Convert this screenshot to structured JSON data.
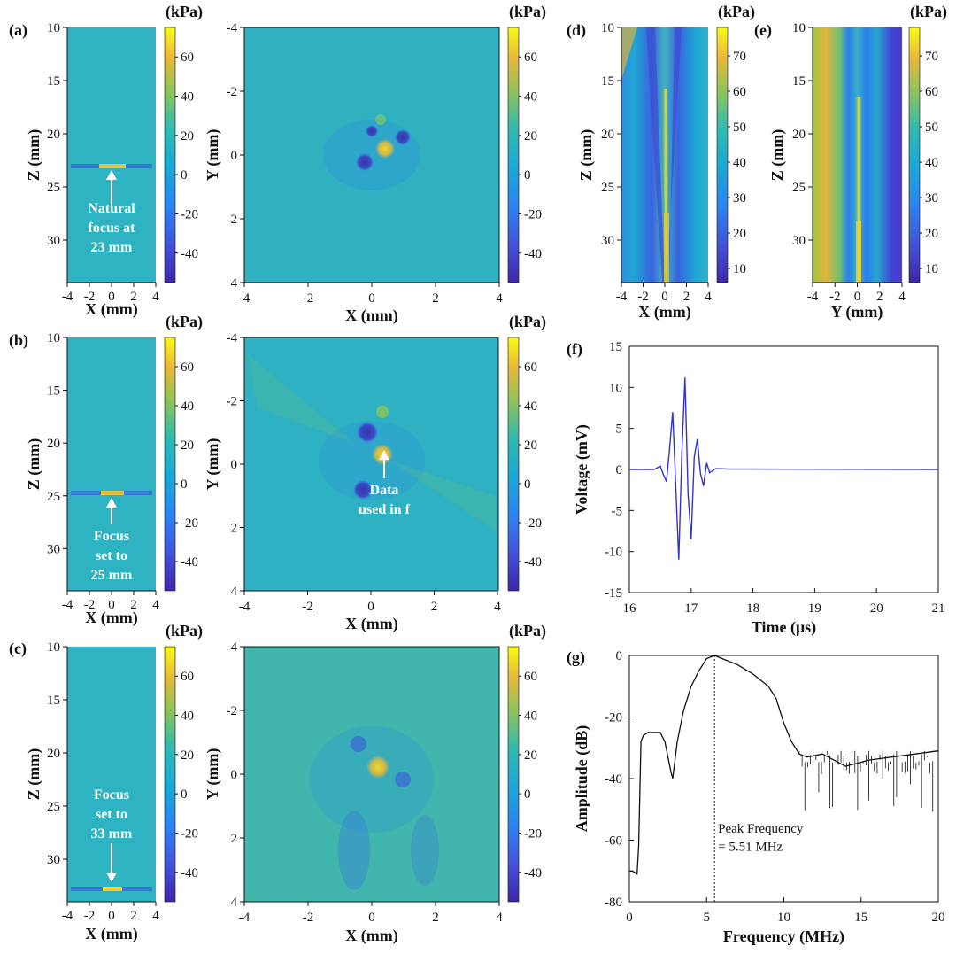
{
  "figure": {
    "colorbar_unit": "(kPa)",
    "colorbar_ticks": [
      "60",
      "40",
      "20",
      "0",
      "-20",
      "-40"
    ],
    "colorbar_ticks_de": [
      "70",
      "60",
      "50",
      "40",
      "30",
      "20",
      "10"
    ],
    "z_ticks": [
      "10",
      "15",
      "20",
      "25",
      "30"
    ],
    "x_ticks_side": [
      "-4",
      "-2",
      "0",
      "2",
      "4"
    ],
    "xy_ticks": [
      "-4",
      "-2",
      "0",
      "2",
      "4"
    ],
    "xy_ticks_y": [
      "-4",
      "-2",
      "0",
      "2",
      "4"
    ],
    "xlabel_x": "X (mm)",
    "ylabel_y": "Y (mm)",
    "ylabel_z": "Z (mm)",
    "xlabel_y": "Y (mm)"
  },
  "panels": {
    "a": {
      "label": "(a)",
      "annotation": [
        "Natural",
        "focus at",
        "23 mm"
      ]
    },
    "b": {
      "label": "(b)",
      "annotation": [
        "Focus",
        "set to",
        "25 mm"
      ],
      "xy_annotation": [
        "Data",
        "used in f"
      ]
    },
    "c": {
      "label": "(c)",
      "annotation": [
        "Focus",
        "set to",
        "33 mm"
      ]
    },
    "d": {
      "label": "(d)"
    },
    "e": {
      "label": "(e)"
    },
    "f": {
      "label": "(f)"
    },
    "g": {
      "label": "(g)",
      "annotation": [
        "Peak Frequency",
        "= 5.51 MHz"
      ]
    }
  },
  "colors": {
    "viridis_low": "#3e26a8",
    "viridis_mid": "#2fb3bf",
    "viridis_high": "#f9fb15",
    "trace_f": "#3333cc",
    "trace_g": "#111111"
  },
  "chart_data": [
    {
      "type": "heatmap",
      "panel": "a",
      "title": "",
      "xlabel": "X (mm)",
      "ylabel": "Z (mm)",
      "xlim": [
        -4,
        4
      ],
      "ylim": [
        10,
        34
      ],
      "colorbar": {
        "label": "(kPa)",
        "range": [
          -55,
          75
        ],
        "ticks": [
          60,
          40,
          20,
          0,
          -20,
          -40
        ]
      },
      "focus_z_mm": 23
    },
    {
      "type": "heatmap",
      "panel": "a-xy",
      "xlabel": "X (mm)",
      "ylabel": "Y (mm)",
      "xlim": [
        -4,
        4
      ],
      "ylim": [
        -4,
        4
      ],
      "colorbar": {
        "label": "(kPa)",
        "range": [
          -55,
          75
        ],
        "ticks": [
          60,
          40,
          20,
          0,
          -20,
          -40
        ]
      }
    },
    {
      "type": "heatmap",
      "panel": "b",
      "xlabel": "X (mm)",
      "ylabel": "Z (mm)",
      "xlim": [
        -4,
        4
      ],
      "ylim": [
        10,
        34
      ],
      "colorbar": {
        "label": "(kPa)",
        "range": [
          -55,
          75
        ],
        "ticks": [
          60,
          40,
          20,
          0,
          -20,
          -40
        ]
      },
      "focus_z_mm": 25
    },
    {
      "type": "heatmap",
      "panel": "b-xy",
      "xlabel": "X (mm)",
      "ylabel": "Y (mm)",
      "xlim": [
        -4,
        4
      ],
      "ylim": [
        -4,
        4
      ],
      "colorbar": {
        "label": "(kPa)",
        "range": [
          -55,
          75
        ],
        "ticks": [
          60,
          40,
          20,
          0,
          -20,
          -40
        ]
      }
    },
    {
      "type": "heatmap",
      "panel": "c",
      "xlabel": "X (mm)",
      "ylabel": "Z (mm)",
      "xlim": [
        -4,
        4
      ],
      "ylim": [
        10,
        34
      ],
      "colorbar": {
        "label": "(kPa)",
        "range": [
          -55,
          75
        ],
        "ticks": [
          60,
          40,
          20,
          0,
          -20,
          -40
        ]
      },
      "focus_z_mm": 33
    },
    {
      "type": "heatmap",
      "panel": "c-xy",
      "xlabel": "X (mm)",
      "ylabel": "Y (mm)",
      "xlim": [
        -4,
        4
      ],
      "ylim": [
        -4,
        4
      ],
      "colorbar": {
        "label": "(kPa)",
        "range": [
          -55,
          75
        ],
        "ticks": [
          60,
          40,
          20,
          0,
          -20,
          -40
        ]
      }
    },
    {
      "type": "heatmap",
      "panel": "d",
      "xlabel": "X (mm)",
      "ylabel": "Z (mm)",
      "xlim": [
        -4,
        4
      ],
      "ylim": [
        10,
        34
      ],
      "colorbar": {
        "label": "(kPa)",
        "range": [
          6,
          78
        ],
        "ticks": [
          70,
          60,
          50,
          40,
          30,
          20,
          10
        ]
      }
    },
    {
      "type": "heatmap",
      "panel": "e",
      "xlabel": "Y (mm)",
      "ylabel": "Z (mm)",
      "xlim": [
        -4,
        4
      ],
      "ylim": [
        10,
        34
      ],
      "colorbar": {
        "label": "(kPa)",
        "range": [
          6,
          78
        ],
        "ticks": [
          70,
          60,
          50,
          40,
          30,
          20,
          10
        ]
      }
    },
    {
      "type": "line",
      "panel": "f",
      "xlabel": "Time (μs)",
      "ylabel": "Voltage (mV)",
      "xlim": [
        16,
        21
      ],
      "ylim": [
        -15,
        15
      ],
      "xticks": [
        16,
        17,
        18,
        19,
        20,
        21
      ],
      "yticks": [
        15,
        10,
        5,
        0,
        -5,
        -10,
        -15
      ],
      "x": [
        16.0,
        16.4,
        16.5,
        16.55,
        16.6,
        16.65,
        16.7,
        16.75,
        16.8,
        16.85,
        16.9,
        16.95,
        17.0,
        17.05,
        17.1,
        17.15,
        17.2,
        17.25,
        17.3,
        17.4,
        17.6,
        21.0
      ],
      "y": [
        0,
        0,
        0.4,
        -0.6,
        -1.5,
        2.5,
        7.0,
        -2.0,
        -11.0,
        2.0,
        11.2,
        -3.0,
        -8.5,
        1.5,
        3.7,
        -0.5,
        -2.0,
        0.8,
        -0.4,
        0.1,
        0.05,
        0
      ]
    },
    {
      "type": "line",
      "panel": "g",
      "xlabel": "Frequency (MHz)",
      "ylabel": "Amplitude (dB)",
      "xlim": [
        0,
        20
      ],
      "ylim": [
        -80,
        0
      ],
      "xticks": [
        0,
        5,
        10,
        15,
        20
      ],
      "yticks": [
        0,
        -20,
        -40,
        -60,
        -80
      ],
      "x": [
        0,
        0.2,
        0.5,
        0.6,
        0.75,
        0.9,
        1.2,
        1.6,
        2.0,
        2.3,
        2.5,
        2.7,
        2.8,
        2.9,
        3.1,
        3.5,
        4.0,
        4.5,
        5.0,
        5.51,
        6.0,
        7.0,
        8.0,
        9.0,
        9.5,
        10.0,
        10.5,
        11.0,
        11.5,
        12.5,
        14.0,
        15.5,
        17.0,
        18.5,
        20.0
      ],
      "y": [
        -70,
        -70,
        -71,
        -62,
        -28,
        -26,
        -25,
        -25,
        -25,
        -28,
        -33,
        -38,
        -40,
        -36,
        -28,
        -18,
        -10,
        -5,
        -1,
        0,
        -1,
        -3,
        -6,
        -10,
        -14,
        -22,
        -28,
        -32,
        -33,
        -32,
        -36,
        -34,
        -33,
        -32,
        -31
      ],
      "annotation": {
        "text": "Peak Frequency = 5.51 MHz",
        "x": 5.51
      }
    }
  ]
}
